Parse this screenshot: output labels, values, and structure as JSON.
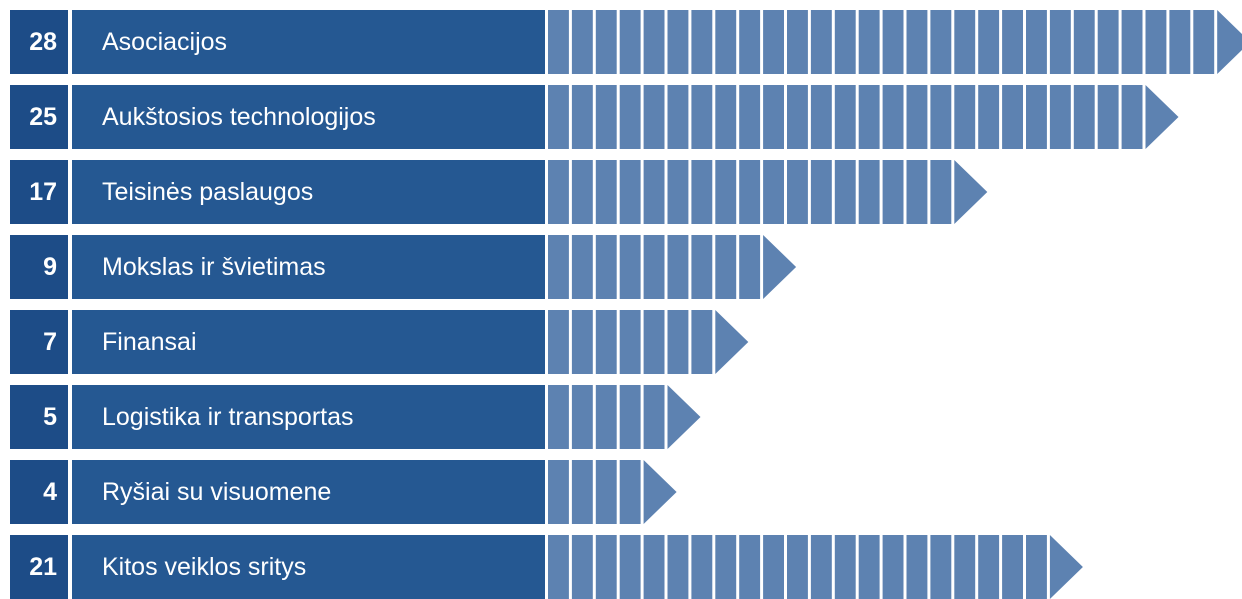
{
  "chart_data": {
    "type": "bar",
    "orientation": "horizontal",
    "categories": [
      "Asociacijos",
      "Aukštosios technologijos",
      "Teisinės paslaugos",
      "Mokslas ir švietimas",
      "Finansai",
      "Logistika ir transportas",
      "Ryšiai su visuomene",
      "Kitos veiklos sritys"
    ],
    "values": [
      28,
      25,
      17,
      9,
      7,
      5,
      4,
      21
    ],
    "value_labels": [
      "28",
      "25",
      "17",
      "9",
      "7",
      "5",
      "4",
      "21"
    ]
  },
  "colors": {
    "number_cell": "#1d4c87",
    "label_cell": "#255892",
    "segment": "#5d82b1"
  }
}
